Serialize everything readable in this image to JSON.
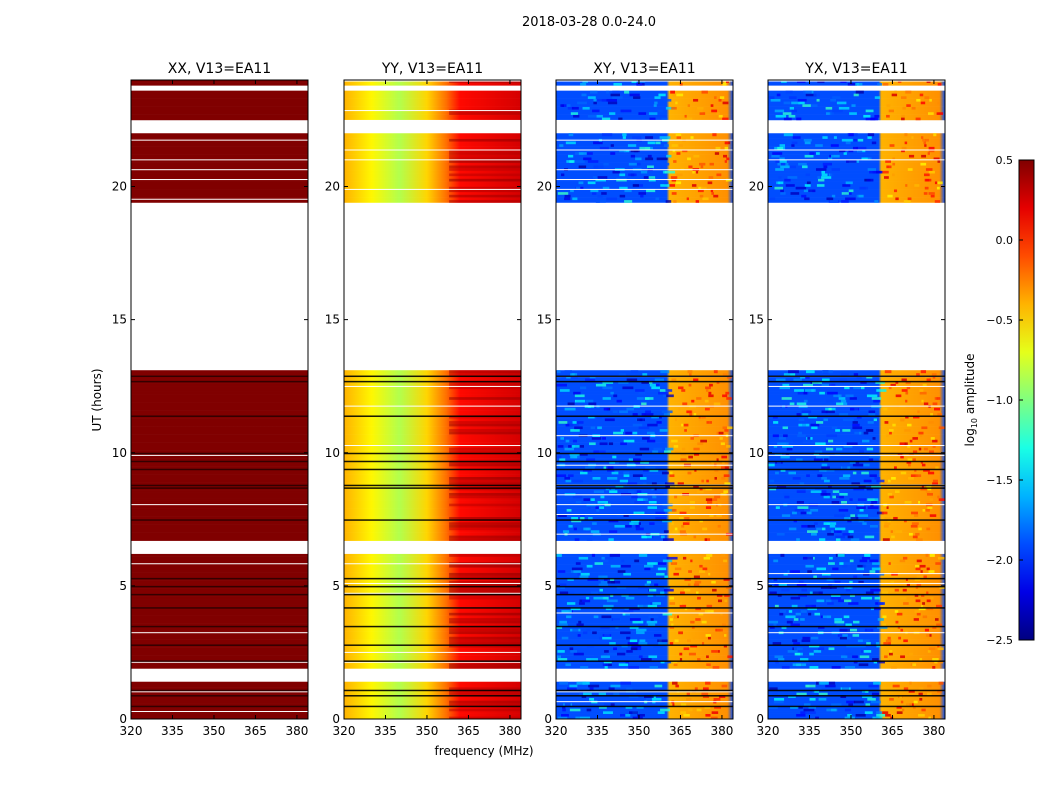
{
  "chart_data": {
    "type": "heatmap",
    "title": "2018-03-28 0.0-24.0",
    "xlabel": "frequency (MHz)",
    "ylabel": "UT (hours)",
    "xlim": [
      320,
      384
    ],
    "ylim": [
      0,
      24
    ],
    "xticks": [
      "320",
      "335",
      "350",
      "365",
      "380"
    ],
    "xtick_values": [
      320,
      335,
      350,
      365,
      380
    ],
    "yticks": [
      "0",
      "5",
      "10",
      "15",
      "20"
    ],
    "ytick_values": [
      0,
      5,
      10,
      15,
      20
    ],
    "flagged_hours": [
      [
        1.4,
        1.95
      ],
      [
        6.2,
        6.65
      ],
      [
        13.05,
        19.45
      ],
      [
        22.0,
        22.5
      ],
      [
        23.6,
        23.8
      ]
    ],
    "dark_rows_hours": [
      0.5,
      0.9,
      1.1,
      2.2,
      2.8,
      3.5,
      4.2,
      4.7,
      5.0,
      5.3,
      7.5,
      8.7,
      8.8,
      9.4,
      9.7,
      10.0,
      11.4,
      12.7,
      12.9
    ],
    "panels": [
      {
        "title": "XX, V13=EA11",
        "profile": "saturated",
        "freq_profile": [
          [
            320,
            0.5
          ],
          [
            384,
            0.5
          ]
        ]
      },
      {
        "title": "YY, V13=EA11",
        "profile": "smooth",
        "freq_profile": [
          [
            320,
            -0.4
          ],
          [
            330,
            -0.6
          ],
          [
            340,
            -0.85
          ],
          [
            350,
            -0.5
          ],
          [
            357,
            -0.2
          ],
          [
            362,
            0.1
          ],
          [
            384,
            0.25
          ]
        ]
      },
      {
        "title": "XY, V13=EA11",
        "profile": "noisy",
        "freq_profile": [
          [
            320,
            -1.9
          ],
          [
            360,
            -1.9
          ],
          [
            361,
            -0.4
          ],
          [
            382,
            -0.3
          ],
          [
            384,
            -1.9
          ]
        ]
      },
      {
        "title": "YX, V13=EA11",
        "profile": "noisy",
        "freq_profile": [
          [
            320,
            -1.9
          ],
          [
            360,
            -1.9
          ],
          [
            361,
            -0.4
          ],
          [
            382,
            -0.3
          ],
          [
            384,
            -1.9
          ]
        ]
      }
    ],
    "colorbar": {
      "label": "log10 amplitude",
      "label_main": "log",
      "label_sub": "10",
      "label_rest": " amplitude",
      "range": [
        -2.5,
        0.5
      ],
      "ticks": [
        "0.5",
        "0.0",
        "−0.5",
        "−1.0",
        "−1.5",
        "−2.0",
        "−2.5"
      ],
      "tick_values": [
        0.5,
        0.0,
        -0.5,
        -1.0,
        -1.5,
        -2.0,
        -2.5
      ],
      "colormap": "jet"
    }
  }
}
